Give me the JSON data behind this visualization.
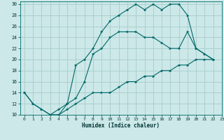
{
  "xlabel": "Humidex (Indice chaleur)",
  "bg_color": "#cce8e8",
  "grid_color": "#a8cccc",
  "line_color": "#006868",
  "xlim": [
    -0.5,
    23
  ],
  "ylim": [
    10,
    30.5
  ],
  "xticks": [
    0,
    1,
    2,
    3,
    4,
    5,
    6,
    7,
    8,
    9,
    10,
    11,
    12,
    13,
    14,
    15,
    16,
    17,
    18,
    19,
    20,
    21,
    22,
    23
  ],
  "yticks": [
    10,
    12,
    14,
    16,
    18,
    20,
    22,
    24,
    26,
    28,
    30
  ],
  "line1_x": [
    0,
    1,
    2,
    3,
    4,
    5,
    6,
    7,
    8,
    9,
    10,
    11,
    12,
    13,
    14,
    15,
    16,
    17,
    18,
    19,
    20,
    21,
    22
  ],
  "line1_y": [
    14,
    12,
    11,
    10,
    10,
    12,
    13,
    16,
    21,
    22,
    24,
    25,
    25,
    25,
    24,
    24,
    23,
    22,
    22,
    25,
    22,
    21,
    20
  ],
  "line2_x": [
    0,
    1,
    2,
    3,
    4,
    5,
    6,
    7,
    8,
    9,
    10,
    11,
    12,
    13,
    14,
    15,
    16,
    17,
    18,
    19,
    20,
    21,
    22
  ],
  "line2_y": [
    14,
    12,
    11,
    10,
    11,
    12,
    19,
    20,
    22,
    25,
    27,
    28,
    29,
    30,
    29,
    30,
    29,
    30,
    30,
    28,
    22,
    21,
    20
  ],
  "line3_x": [
    3,
    4,
    5,
    6,
    7,
    8,
    9,
    10,
    11,
    12,
    13,
    14,
    15,
    16,
    17,
    18,
    19,
    20,
    21,
    22
  ],
  "line3_y": [
    10,
    10,
    11,
    12,
    13,
    14,
    14,
    14,
    15,
    16,
    16,
    17,
    17,
    18,
    18,
    19,
    19,
    20,
    20,
    20
  ]
}
